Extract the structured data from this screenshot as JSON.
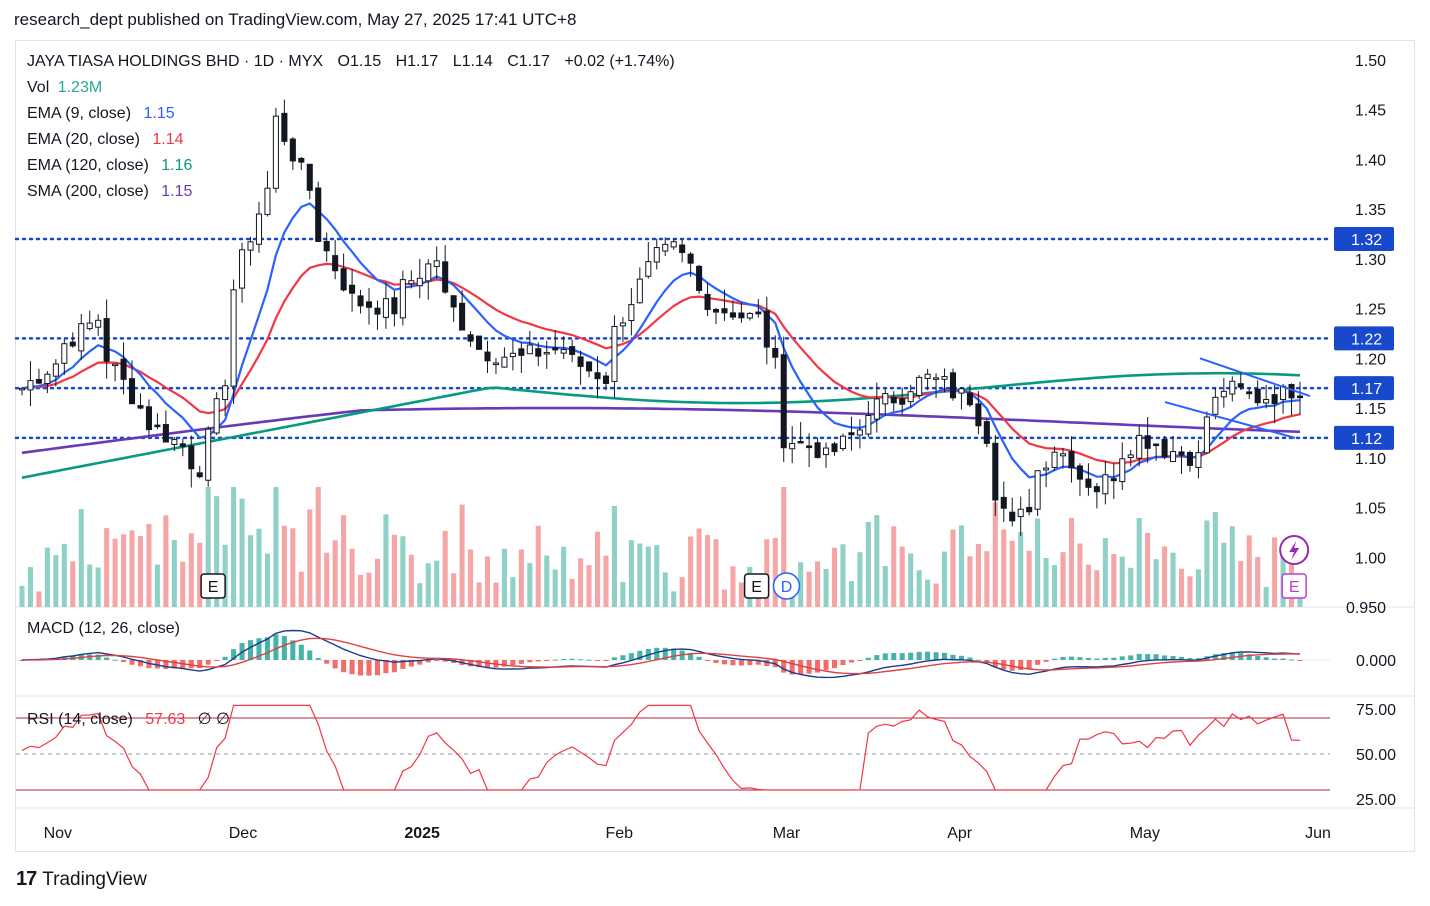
{
  "header": {
    "text": "research_dept published on TradingView.com, May 27, 2025 17:41 UTC+8"
  },
  "legend": {
    "symbol": "JAYA TIASA HOLDINGS BHD · 1D · MYX",
    "ohlc": {
      "o_label": "O",
      "o": "1.15",
      "h_label": "H",
      "h": "1.17",
      "l_label": "L",
      "l": "1.14",
      "c_label": "C",
      "c": "1.17",
      "change": "+0.02 (+1.74%)"
    },
    "vol_label": "Vol",
    "vol_value": "1.23M",
    "ema9_label": "EMA (9, close)",
    "ema9_value": "1.15",
    "ema20_label": "EMA (20, close)",
    "ema20_value": "1.14",
    "ema120_label": "EMA (120, close)",
    "ema120_value": "1.16",
    "sma200_label": "SMA (200, close)",
    "sma200_value": "1.15",
    "macd_label": "MACD (12, 26, close)",
    "rsi_label": "RSI (14, close)",
    "rsi_value": "57.63",
    "rsi_extra": "∅  ∅"
  },
  "footer": {
    "brand": "TradingView"
  },
  "colors": {
    "up": "#ffffff",
    "down": "#131722",
    "ema9": "#2962ff",
    "ema20": "#f23645",
    "ema120": "#089981",
    "sma200": "#673ab7",
    "level": "#1848cc",
    "vol_up": "#8fd1c7",
    "vol_down": "#f5a5a5",
    "macd_line": "#1a3d8f",
    "signal_line": "#e0403f",
    "rsi": "#f23645"
  },
  "chart_data": {
    "type": "candlestick",
    "symbol": "JAYA TIASA HOLDINGS BHD",
    "interval": "1D",
    "exchange": "MYX",
    "x_range": [
      "2024-10-25",
      "2025-05-27"
    ],
    "x_tick_labels": [
      "Nov",
      "Dec",
      "2025",
      "Feb",
      "Mar",
      "Apr",
      "May",
      "Jun"
    ],
    "y_tick_labels": [
      "1.50",
      "1.45",
      "1.40",
      "1.35",
      "1.30",
      "1.25",
      "1.20",
      "1.15",
      "1.10",
      "1.05",
      "1.00",
      "0.950"
    ],
    "ylim": [
      0.95,
      1.52
    ],
    "horizontal_levels": [
      {
        "value": 1.32,
        "label": "1.32"
      },
      {
        "value": 1.22,
        "label": "1.22"
      },
      {
        "value": 1.17,
        "label": "1.17"
      },
      {
        "value": 1.12,
        "label": "1.12"
      }
    ],
    "close_keypoints": [
      {
        "date": "2024-10-28",
        "close": 1.17
      },
      {
        "date": "2024-11-08",
        "close": 1.24
      },
      {
        "date": "2024-11-15",
        "close": 1.15
      },
      {
        "date": "2024-11-26",
        "close": 1.09
      },
      {
        "date": "2024-12-03",
        "close": 1.3
      },
      {
        "date": "2024-12-09",
        "close": 1.44
      },
      {
        "date": "2024-12-13",
        "close": 1.37
      },
      {
        "date": "2024-12-20",
        "close": 1.26
      },
      {
        "date": "2024-12-27",
        "close": 1.25
      },
      {
        "date": "2025-01-03",
        "close": 1.3
      },
      {
        "date": "2025-01-10",
        "close": 1.21
      },
      {
        "date": "2025-01-17",
        "close": 1.2
      },
      {
        "date": "2025-01-24",
        "close": 1.21
      },
      {
        "date": "2025-01-31",
        "close": 1.18
      },
      {
        "date": "2025-02-07",
        "close": 1.29
      },
      {
        "date": "2025-02-12",
        "close": 1.31
      },
      {
        "date": "2025-02-19",
        "close": 1.25
      },
      {
        "date": "2025-02-26",
        "close": 1.24
      },
      {
        "date": "2025-03-03",
        "close": 1.12
      },
      {
        "date": "2025-03-10",
        "close": 1.1
      },
      {
        "date": "2025-03-17",
        "close": 1.15
      },
      {
        "date": "2025-03-26",
        "close": 1.18
      },
      {
        "date": "2025-04-02",
        "close": 1.16
      },
      {
        "date": "2025-04-09",
        "close": 1.03
      },
      {
        "date": "2025-04-16",
        "close": 1.11
      },
      {
        "date": "2025-04-23",
        "close": 1.07
      },
      {
        "date": "2025-04-30",
        "close": 1.12
      },
      {
        "date": "2025-05-09",
        "close": 1.1
      },
      {
        "date": "2025-05-14",
        "close": 1.17
      },
      {
        "date": "2025-05-20",
        "close": 1.16
      },
      {
        "date": "2025-05-27",
        "close": 1.17
      }
    ],
    "last_bar": {
      "open": 1.15,
      "high": 1.17,
      "low": 1.14,
      "close": 1.17,
      "volume": "1.23M"
    },
    "indicators": {
      "ema9": 1.15,
      "ema20": 1.14,
      "ema120": 1.16,
      "sma200": 1.15,
      "macd": {
        "y_tick_labels": [
          "0.000"
        ]
      },
      "rsi": {
        "value": 57.63,
        "y_tick_labels": [
          "75.00",
          "50.00",
          "25.00"
        ],
        "bands": [
          70,
          30
        ]
      }
    },
    "event_markers": [
      {
        "label": "E",
        "date": "2024-11-27"
      },
      {
        "label": "E",
        "date": "2025-02-26"
      },
      {
        "label": "D",
        "date": "2025-03-03"
      },
      {
        "label": "E",
        "date": "2025-05-27"
      }
    ]
  }
}
